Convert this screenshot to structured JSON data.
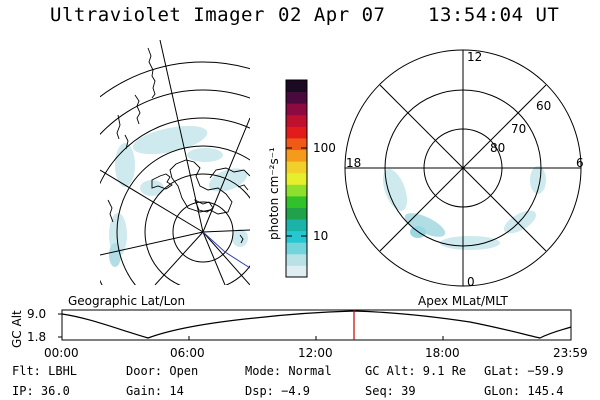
{
  "header": {
    "title": "Ultraviolet Imager",
    "date": "02 Apr 07",
    "time": "13:54:04 UT"
  },
  "left_panel": {
    "caption": "Geographic Lat/Lon"
  },
  "right_panel": {
    "caption": "Apex MLat/MLT",
    "mlt_labels": {
      "top": "12",
      "right": "6",
      "bottom": "0",
      "left": "18"
    },
    "lat_labels": [
      "60",
      "70",
      "80"
    ]
  },
  "colorbar": {
    "unit_label": "photon cm⁻²s⁻¹",
    "ticks": [
      "100",
      "10"
    ],
    "colors": [
      "#dfeef0",
      "#b9e2e6",
      "#73d5dc",
      "#27c6d0",
      "#1bb3a8",
      "#21a24a",
      "#30c12b",
      "#8ee02c",
      "#e6ef2c",
      "#f3cf2a",
      "#f59a1a",
      "#f05a17",
      "#e21b1b",
      "#c01030",
      "#8c0a40",
      "#4b0a3e",
      "#1a0a22"
    ]
  },
  "timeline": {
    "axis_label_1": "GC Alt",
    "axis_label_2": "",
    "y_ticks": [
      "9.0",
      "1.8"
    ],
    "x_ticks": [
      "00:00",
      "06:00",
      "12:00",
      "18:00",
      "23:59"
    ],
    "current_marker_color": "#cc0000"
  },
  "info": {
    "filter": "Flt: LBHL",
    "door": "Door: Open",
    "mode": "Mode: Normal",
    "gc_alt": "GC Alt: 9.1 Re",
    "glat": "GLat: −59.9",
    "ip": "IP: 36.0",
    "gain": "Gain: 14",
    "dsp": "Dsp:    −4.9",
    "seq": "Seq: 39",
    "glon": "GLon: 145.4"
  }
}
